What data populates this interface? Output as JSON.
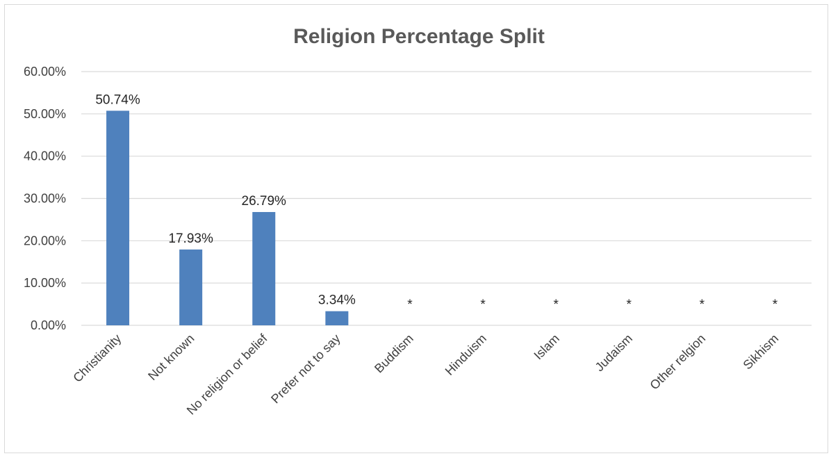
{
  "chart_data": {
    "type": "bar",
    "title": "Religion Percentage Split",
    "categories": [
      "Christianity",
      "Not known",
      "No religion or belief",
      "Prefer not to say",
      "Buddism",
      "Hinduism",
      "Islam",
      "Judaism",
      "Other relgion",
      "Sikhism"
    ],
    "values": [
      50.74,
      17.93,
      26.79,
      3.34,
      null,
      null,
      null,
      null,
      null,
      null
    ],
    "data_labels": [
      "50.74%",
      "17.93%",
      "26.79%",
      "3.34%",
      "*",
      "*",
      "*",
      "*",
      "*",
      "*"
    ],
    "yticks": [
      "0.00%",
      "10.00%",
      "20.00%",
      "30.00%",
      "40.00%",
      "50.00%",
      "60.00%"
    ],
    "ylim": [
      0,
      60
    ],
    "xlabel": "",
    "ylabel": "",
    "grid": true,
    "legend": "none",
    "bar_color": "#4f81bd"
  }
}
